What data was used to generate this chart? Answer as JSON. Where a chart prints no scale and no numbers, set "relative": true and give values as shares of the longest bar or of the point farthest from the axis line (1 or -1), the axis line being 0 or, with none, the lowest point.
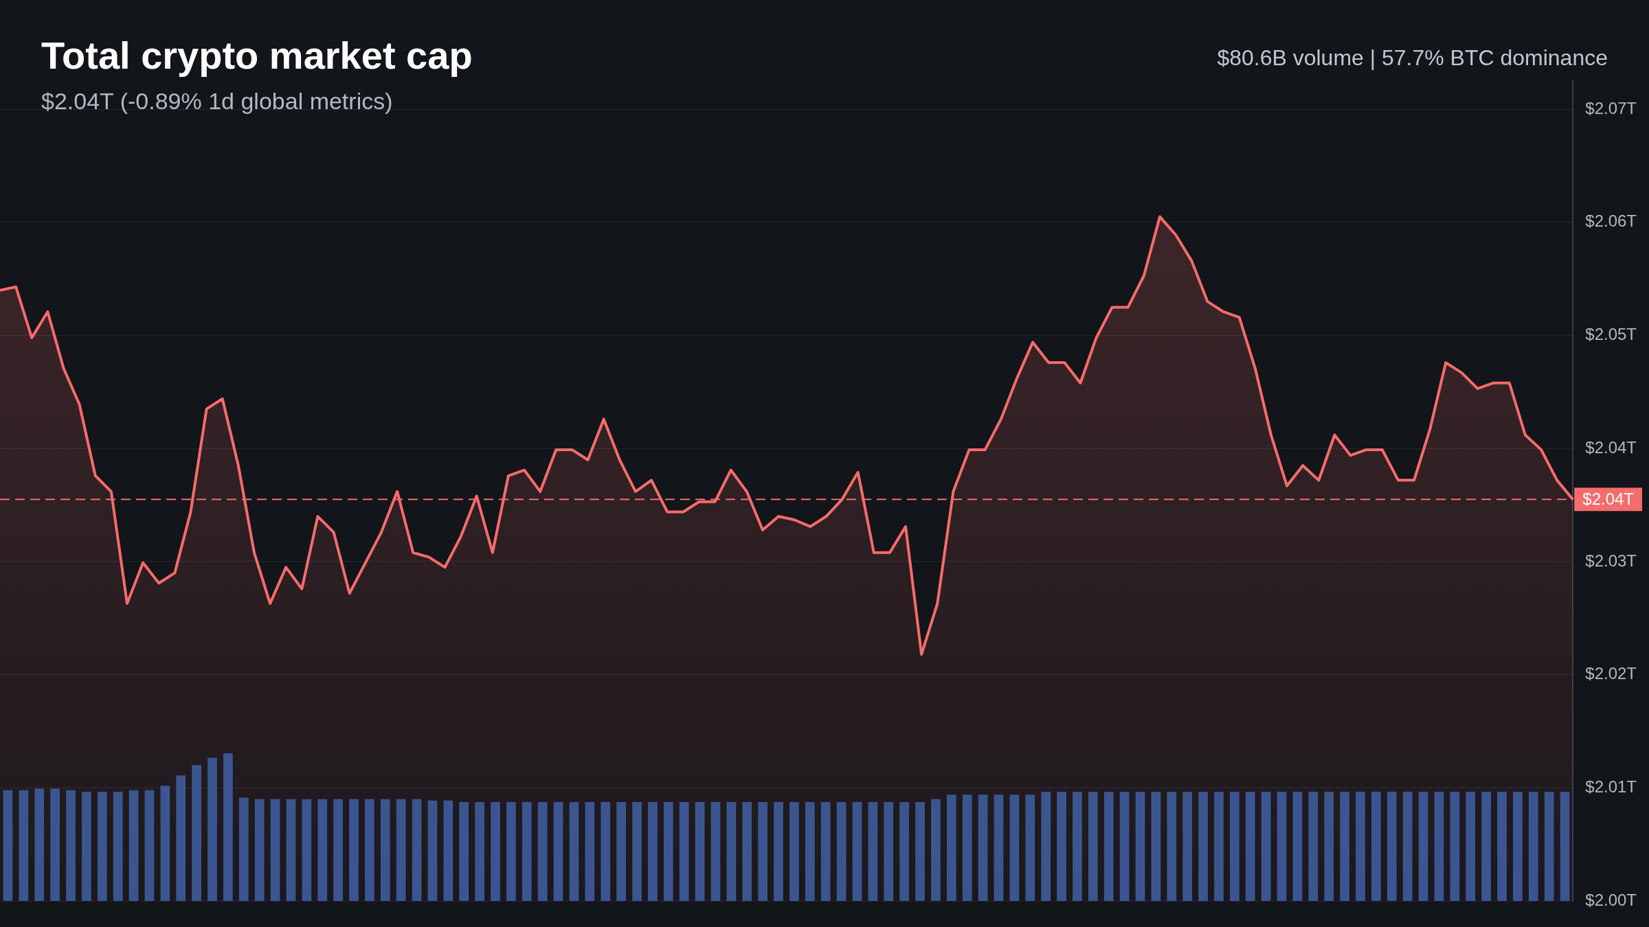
{
  "chart_data": [
    {
      "type": "area",
      "title": "Total crypto market cap",
      "subtitle": "$2.04T (-0.89% 1d global metrics)",
      "annotations": [
        "$80.6B volume | 57.7% BTC dominance"
      ],
      "categories": [
        null,
        null,
        null,
        null,
        null,
        null,
        null,
        null,
        null,
        null,
        null,
        null,
        null,
        null,
        null,
        null,
        null,
        null,
        null,
        null,
        null,
        null,
        null,
        null,
        null,
        null,
        null,
        null,
        null,
        null,
        null,
        null,
        null,
        null,
        null,
        null,
        null,
        null,
        null,
        null,
        null,
        null,
        null,
        null,
        null,
        null,
        null,
        null,
        null,
        null,
        null,
        null,
        null,
        null,
        null,
        null,
        null,
        null,
        null,
        null,
        null,
        null,
        null,
        null,
        null,
        null,
        null,
        null,
        null,
        null,
        null,
        null,
        null,
        null,
        null,
        null,
        null,
        null,
        null,
        null,
        null,
        null,
        null,
        null,
        null,
        null,
        null,
        null,
        null,
        null,
        null,
        null,
        null,
        null,
        null,
        null,
        null,
        null,
        null,
        null
      ],
      "series": [
        {
          "color": "#f66b6b",
          "values": [
            2.054,
            2.0543,
            2.0498,
            2.0521,
            2.0471,
            2.0439,
            2.0376,
            2.0362,
            2.0263,
            2.0299,
            2.0281,
            2.029,
            2.0344,
            2.0435,
            2.0444,
            2.0385,
            2.0308,
            2.0263,
            2.0295,
            2.0276,
            2.034,
            2.0326,
            2.0272,
            2.0299,
            2.0326,
            2.0362,
            2.0308,
            2.0304,
            2.0295,
            2.0322,
            2.0358,
            2.0308,
            2.0376,
            2.0381,
            2.0362,
            2.0399,
            2.0399,
            2.039,
            2.0426,
            2.039,
            2.0362,
            2.0372,
            2.0344,
            2.0344,
            2.0353,
            2.0353,
            2.0381,
            2.0362,
            2.0328,
            2.034,
            2.0337,
            2.0331,
            2.034,
            2.0355,
            2.0379,
            2.0308,
            2.0308,
            2.0331,
            2.0218,
            2.0263,
            2.0362,
            2.0399,
            2.0399,
            2.0426,
            2.0462,
            2.0494,
            2.0476,
            2.0476,
            2.0458,
            2.0498,
            2.0525,
            2.0525,
            2.0553,
            2.0605,
            2.0589,
            2.0566,
            2.053,
            2.0521,
            2.0516,
            2.0471,
            2.0412,
            2.0367,
            2.0385,
            2.0372,
            2.0412,
            2.0394,
            2.0399,
            2.0399,
            2.0372,
            2.0372,
            2.0417,
            2.0476,
            2.0467,
            2.0453,
            2.0458,
            2.0458,
            2.0412,
            2.0399,
            2.0372,
            2.0355
          ]
        }
      ],
      "ylim": [
        2.0,
        2.0725
      ],
      "yticks": [
        {
          "value": 2.0,
          "label": "$2.00T"
        },
        {
          "value": 2.01,
          "label": "$2.01T"
        },
        {
          "value": 2.02,
          "label": "$2.02T"
        },
        {
          "value": 2.03,
          "label": "$2.03T"
        },
        {
          "value": 2.04,
          "label": "$2.04T"
        },
        {
          "value": 2.05,
          "label": "$2.05T"
        },
        {
          "value": 2.06,
          "label": "$2.06T"
        },
        {
          "value": 2.07,
          "label": "$2.07T"
        }
      ],
      "ref_lines": [
        {
          "axis": "y",
          "value": 2.0355,
          "label": "$2.04T",
          "color": "#f66b6b",
          "line_style": "dashed"
        }
      ],
      "grid": "y",
      "tick_labels": "y",
      "legend": false,
      "marker": "none",
      "line_style": "solid"
    },
    {
      "type": "bar",
      "relative": true,
      "color": "#3b5591",
      "tick_labels": false,
      "legend": false,
      "categories": [
        null,
        null,
        null,
        null,
        null,
        null,
        null,
        null,
        null,
        null,
        null,
        null,
        null,
        null,
        null,
        null,
        null,
        null,
        null,
        null,
        null,
        null,
        null,
        null,
        null,
        null,
        null,
        null,
        null,
        null,
        null,
        null,
        null,
        null,
        null,
        null,
        null,
        null,
        null,
        null,
        null,
        null,
        null,
        null,
        null,
        null,
        null,
        null,
        null,
        null,
        null,
        null,
        null,
        null,
        null,
        null,
        null,
        null,
        null,
        null,
        null,
        null,
        null,
        null,
        null,
        null,
        null,
        null,
        null,
        null,
        null,
        null,
        null,
        null,
        null,
        null,
        null,
        null,
        null,
        null,
        null,
        null,
        null,
        null,
        null,
        null,
        null,
        null,
        null,
        null,
        null,
        null,
        null,
        null,
        null,
        null,
        null,
        null,
        null,
        null
      ],
      "values": [
        0.75,
        0.75,
        0.76,
        0.76,
        0.75,
        0.74,
        0.74,
        0.74,
        0.75,
        0.75,
        0.78,
        0.85,
        0.92,
        0.97,
        1,
        0.7,
        0.69,
        0.69,
        0.69,
        0.69,
        0.69,
        0.69,
        0.69,
        0.69,
        0.69,
        0.69,
        0.69,
        0.68,
        0.68,
        0.67,
        0.67,
        0.67,
        0.67,
        0.67,
        0.67,
        0.67,
        0.67,
        0.67,
        0.67,
        0.67,
        0.67,
        0.67,
        0.67,
        0.67,
        0.67,
        0.67,
        0.67,
        0.67,
        0.67,
        0.67,
        0.67,
        0.67,
        0.67,
        0.67,
        0.67,
        0.67,
        0.67,
        0.67,
        0.67,
        0.69,
        0.72,
        0.72,
        0.72,
        0.72,
        0.72,
        0.72,
        0.74,
        0.74,
        0.74,
        0.74,
        0.74,
        0.74,
        0.74,
        0.74,
        0.74,
        0.74,
        0.74,
        0.74,
        0.74,
        0.74,
        0.74,
        0.74,
        0.74,
        0.74,
        0.74,
        0.74,
        0.74,
        0.74,
        0.74,
        0.74,
        0.74,
        0.74,
        0.74,
        0.74,
        0.74,
        0.74,
        0.74,
        0.74,
        0.74,
        0.74
      ]
    }
  ]
}
